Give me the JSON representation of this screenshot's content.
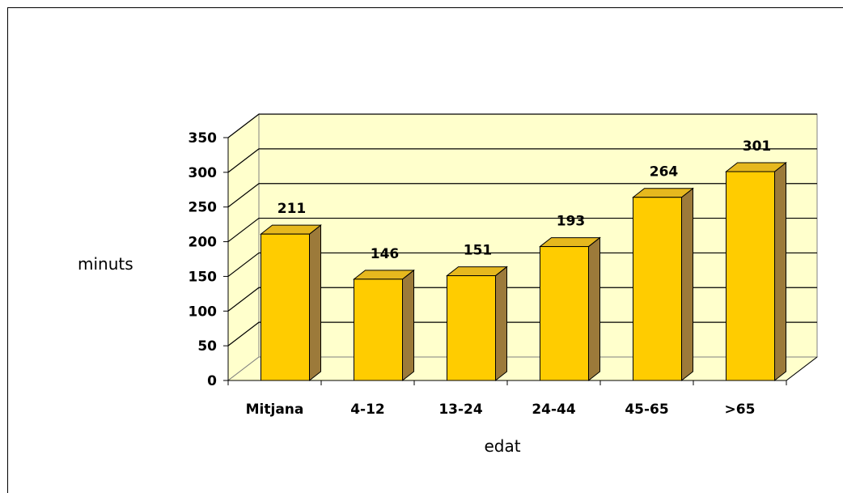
{
  "chart_data": {
    "type": "bar",
    "categories": [
      "Mitjana",
      "4-12",
      "13-24",
      "24-44",
      "45-65",
      ">65"
    ],
    "values": [
      211,
      146,
      151,
      193,
      264,
      301
    ],
    "xlabel": "edat",
    "ylabel": "minuts",
    "ylim": [
      0,
      350
    ],
    "yticks": [
      0,
      50,
      100,
      150,
      200,
      250,
      300,
      350
    ],
    "grid": true,
    "three_d": true,
    "data_labels": true,
    "colors": {
      "bar_front": "#FFCC00",
      "bar_side": "#9C7A3A",
      "bar_top": "#E6B81E",
      "wall": "#FFFFCC",
      "grid": "#000000"
    }
  }
}
